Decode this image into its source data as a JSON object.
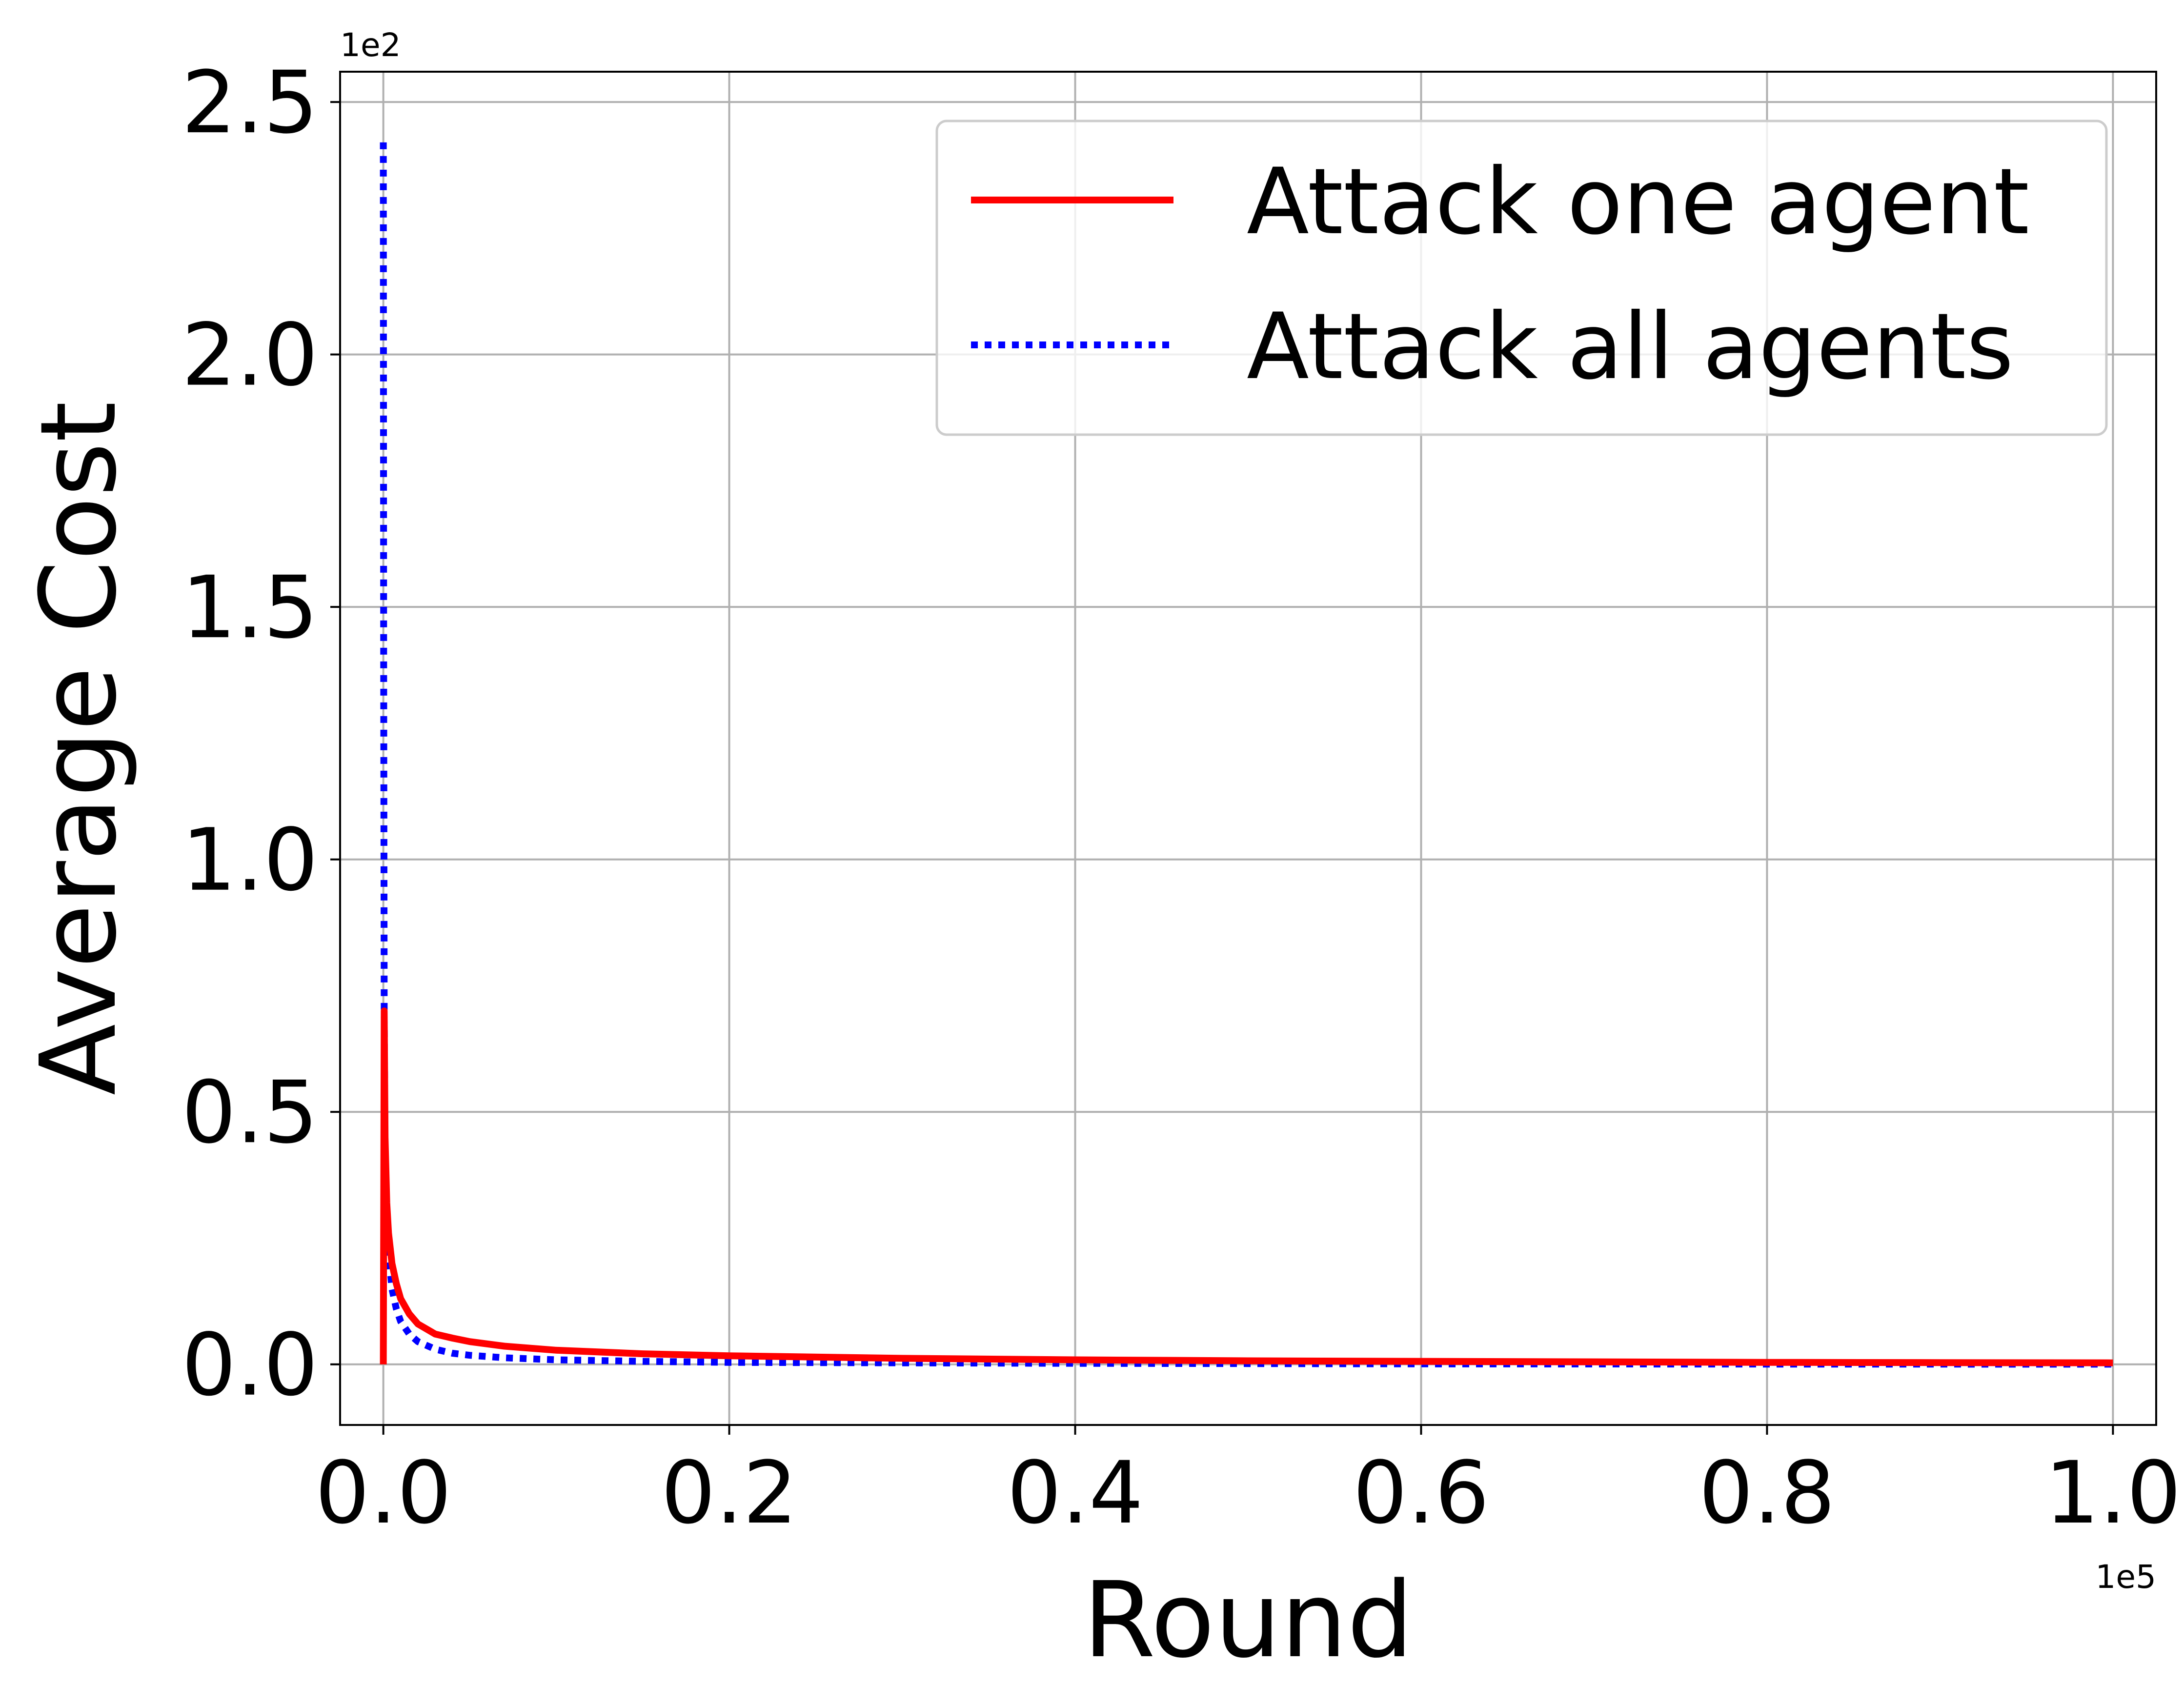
{
  "chart_data": {
    "type": "line",
    "title": "",
    "xlabel": "Round",
    "ylabel": "Average Cost",
    "x_offset_label": "1e5",
    "y_offset_label": "1e2",
    "xlim": [
      -0.025,
      1.025
    ],
    "ylim": [
      -0.12,
      2.56
    ],
    "x_ticks": [
      0.0,
      0.2,
      0.4,
      0.6,
      0.8,
      1.0
    ],
    "x_tick_labels": [
      "0.0",
      "0.2",
      "0.4",
      "0.6",
      "0.8",
      "1.0"
    ],
    "y_ticks": [
      0.0,
      0.5,
      1.0,
      1.5,
      2.0,
      2.5
    ],
    "y_tick_labels": [
      "0.0",
      "0.5",
      "1.0",
      "1.5",
      "2.0",
      "2.5"
    ],
    "grid": true,
    "legend_position": "top-right",
    "series": [
      {
        "name": "Attack one agent",
        "color": "#ff0000",
        "style": "solid",
        "x": [
          0.0,
          0.0005,
          0.001,
          0.002,
          0.003,
          0.005,
          0.0075,
          0.01,
          0.015,
          0.02,
          0.03,
          0.04,
          0.05,
          0.07,
          0.1,
          0.15,
          0.2,
          0.3,
          0.4,
          0.5,
          0.6,
          0.7,
          0.8,
          0.9,
          1.0
        ],
        "y": [
          0.0,
          0.7,
          0.45,
          0.32,
          0.26,
          0.2,
          0.16,
          0.13,
          0.1,
          0.08,
          0.06,
          0.052,
          0.045,
          0.036,
          0.028,
          0.021,
          0.017,
          0.012,
          0.009,
          0.007,
          0.006,
          0.005,
          0.004,
          0.0035,
          0.003
        ]
      },
      {
        "name": "Attack all agents",
        "color": "#0000ff",
        "style": "dotted",
        "x": [
          0.0,
          0.0002,
          0.0005,
          0.001,
          0.002,
          0.003,
          0.005,
          0.0075,
          0.01,
          0.015,
          0.02,
          0.03,
          0.04,
          0.05,
          0.07,
          0.1,
          0.15,
          0.2,
          0.3,
          0.4,
          0.5,
          0.6,
          0.7,
          0.8,
          0.9,
          1.0
        ],
        "y": [
          2.42,
          1.4,
          0.7,
          0.4,
          0.28,
          0.22,
          0.15,
          0.11,
          0.085,
          0.06,
          0.045,
          0.03,
          0.022,
          0.018,
          0.013,
          0.009,
          0.006,
          0.004,
          0.003,
          0.002,
          0.0015,
          0.001,
          0.0008,
          0.0006,
          0.0005,
          0.0004
        ]
      }
    ]
  }
}
